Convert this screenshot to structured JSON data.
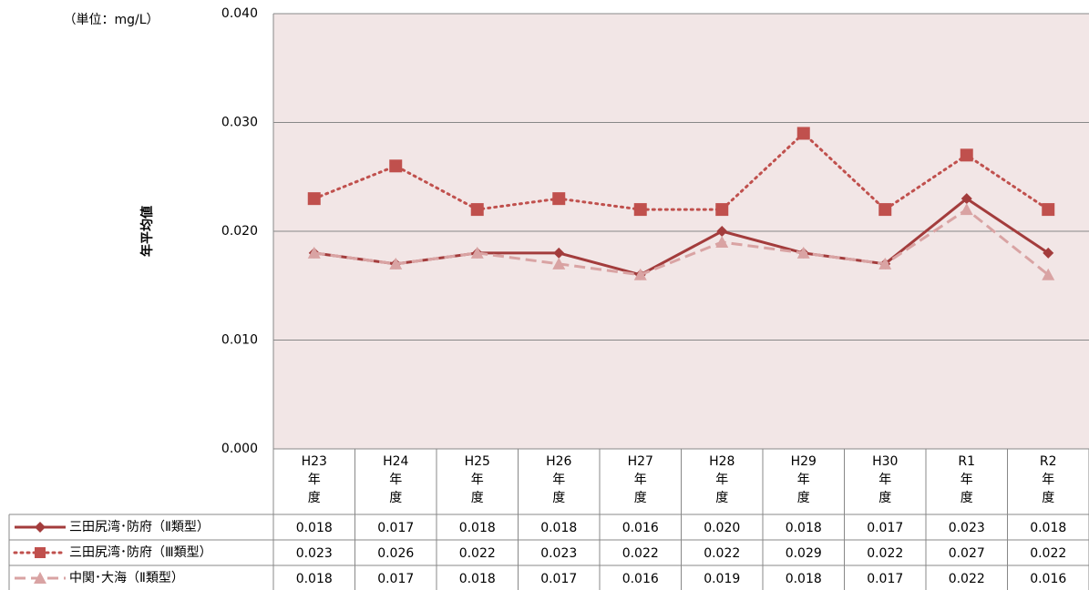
{
  "chart_data": {
    "type": "line",
    "unit_label": "（単位：mg/L）",
    "y_label": "年平均値",
    "categories": [
      "H23\n年\n度",
      "H24\n年\n度",
      "H25\n年\n度",
      "H26\n年\n度",
      "H27\n年\n度",
      "H28\n年\n度",
      "H29\n年\n度",
      "H30\n年\n度",
      "R1\n年\n度",
      "R2\n年\n度"
    ],
    "ylim": [
      0,
      0.04
    ],
    "yticks": [
      {
        "value": 0,
        "label": "0.000"
      },
      {
        "value": 0.01,
        "label": "0.010"
      },
      {
        "value": 0.02,
        "label": "0.020"
      },
      {
        "value": 0.03,
        "label": "0.030"
      },
      {
        "value": 0.04,
        "label": "0.040"
      }
    ],
    "grid": true,
    "series": [
      {
        "name": "三田尻湾･防府（Ⅱ類型）",
        "color": "#a33c3c",
        "marker": "diamond",
        "dash": "solid",
        "values": [
          0.018,
          0.017,
          0.018,
          0.018,
          0.016,
          0.02,
          0.018,
          0.017,
          0.023,
          0.018
        ],
        "value_labels": [
          "0.018",
          "0.017",
          "0.018",
          "0.018",
          "0.016",
          "0.020",
          "0.018",
          "0.017",
          "0.023",
          "0.018"
        ]
      },
      {
        "name": "三田尻湾･防府（Ⅲ類型）",
        "color": "#c0504d",
        "marker": "square",
        "dash": "dotted",
        "values": [
          0.023,
          0.026,
          0.022,
          0.023,
          0.022,
          0.022,
          0.029,
          0.022,
          0.027,
          0.022
        ],
        "value_labels": [
          "0.023",
          "0.026",
          "0.022",
          "0.023",
          "0.022",
          "0.022",
          "0.029",
          "0.022",
          "0.027",
          "0.022"
        ]
      },
      {
        "name": "中関･大海（Ⅱ類型）",
        "color": "#d9a3a3",
        "marker": "triangle",
        "dash": "dashed",
        "values": [
          0.018,
          0.017,
          0.018,
          0.017,
          0.016,
          0.019,
          0.018,
          0.017,
          0.022,
          0.016
        ],
        "value_labels": [
          "0.018",
          "0.017",
          "0.018",
          "0.017",
          "0.016",
          "0.019",
          "0.018",
          "0.017",
          "0.022",
          "0.016"
        ]
      }
    ]
  }
}
